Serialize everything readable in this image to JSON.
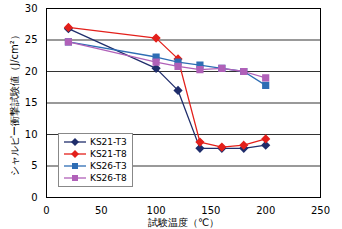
{
  "chart_data": {
    "type": "line",
    "x_label": "試験温度（℃）",
    "y_label": "シャルピー衝撃試験値（J/cm²）",
    "x": [
      20,
      100,
      120,
      140,
      160,
      180,
      200
    ],
    "series": [
      {
        "name": "KS21-T3",
        "color": "#1f2d6b",
        "marker": "diamond",
        "values": [
          26.8,
          20.5,
          17,
          7.8,
          7.8,
          7.8,
          8.3
        ]
      },
      {
        "name": "KS21-T8",
        "color": "#e3201b",
        "marker": "diamond",
        "values": [
          27,
          25.3,
          22,
          8.8,
          8,
          8.3,
          9.3
        ]
      },
      {
        "name": "KS26-T3",
        "color": "#2e6db4",
        "marker": "square",
        "values": [
          24.7,
          22.3,
          21.5,
          21,
          20.5,
          20,
          17.8
        ]
      },
      {
        "name": "KS26-T8",
        "color": "#b060b8",
        "marker": "square",
        "values": [
          24.7,
          21.5,
          20.8,
          20.3,
          20.5,
          20,
          19
        ]
      }
    ],
    "xlim": [
      0,
      250
    ],
    "xticks": [
      0,
      50,
      100,
      150,
      200,
      250
    ],
    "ylim": [
      0,
      30
    ],
    "yticks": [
      0,
      5,
      10,
      15,
      20,
      25,
      30
    ],
    "grid": "y",
    "legend": "lower left"
  }
}
